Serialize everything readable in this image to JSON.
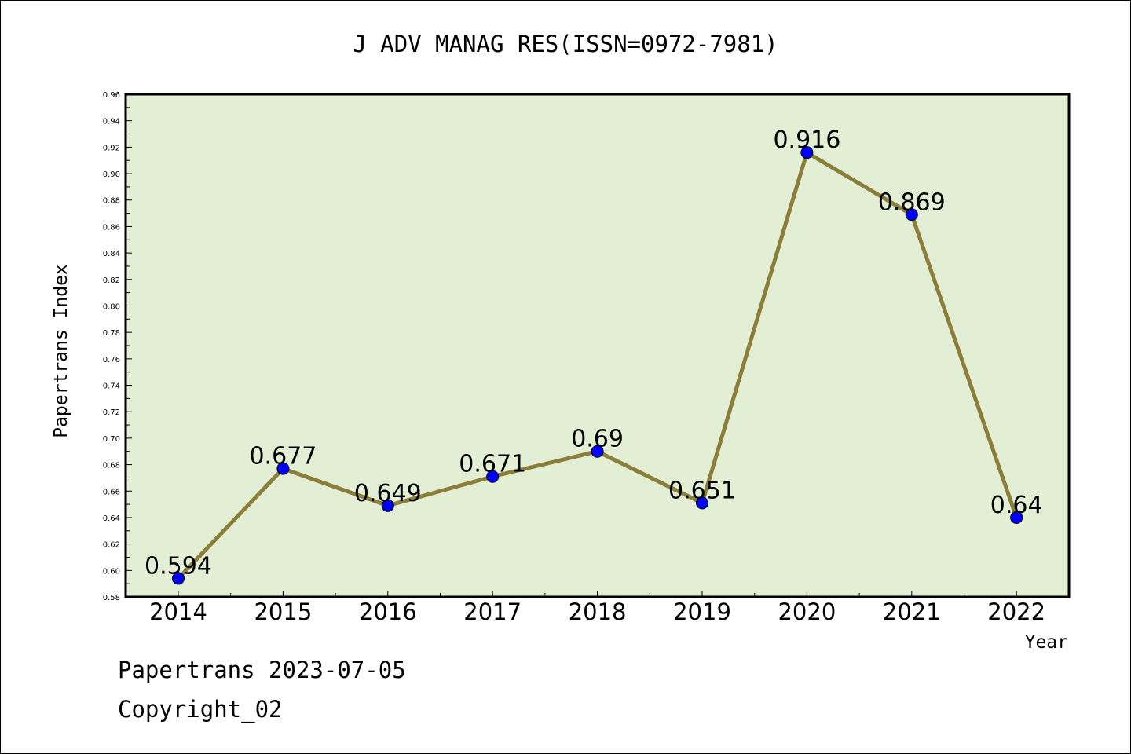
{
  "chart_data": {
    "type": "line",
    "title": "J ADV MANAG RES(ISSN=0972-7981)",
    "xlabel": "Year",
    "ylabel": "Papertrans Index",
    "categories": [
      "2014",
      "2015",
      "2016",
      "2017",
      "2018",
      "2019",
      "2020",
      "2021",
      "2022"
    ],
    "series": [
      {
        "values": [
          0.594,
          0.677,
          0.649,
          0.671,
          0.69,
          0.651,
          0.916,
          0.869,
          0.64
        ],
        "data_labels": [
          "0.594",
          "0.677",
          "0.649",
          "0.671",
          "0.69",
          "0.651",
          "0.916",
          "0.869",
          "0.64"
        ]
      }
    ],
    "ylim": [
      0.58,
      0.96
    ],
    "yticks": [
      "0.58",
      "0.60",
      "0.62",
      "0.64",
      "0.66",
      "0.68",
      "0.70",
      "0.72",
      "0.74",
      "0.76",
      "0.78",
      "0.80",
      "0.82",
      "0.84",
      "0.86",
      "0.88",
      "0.90",
      "0.92",
      "0.94",
      "0.96"
    ],
    "grid": false,
    "colors": {
      "plot_background": "#e2efd4",
      "line": "#8b7d3a",
      "marker": "#0000ff"
    }
  },
  "footer": {
    "source": "Papertrans 2023-07-05",
    "copyright": "Copyright_02"
  }
}
